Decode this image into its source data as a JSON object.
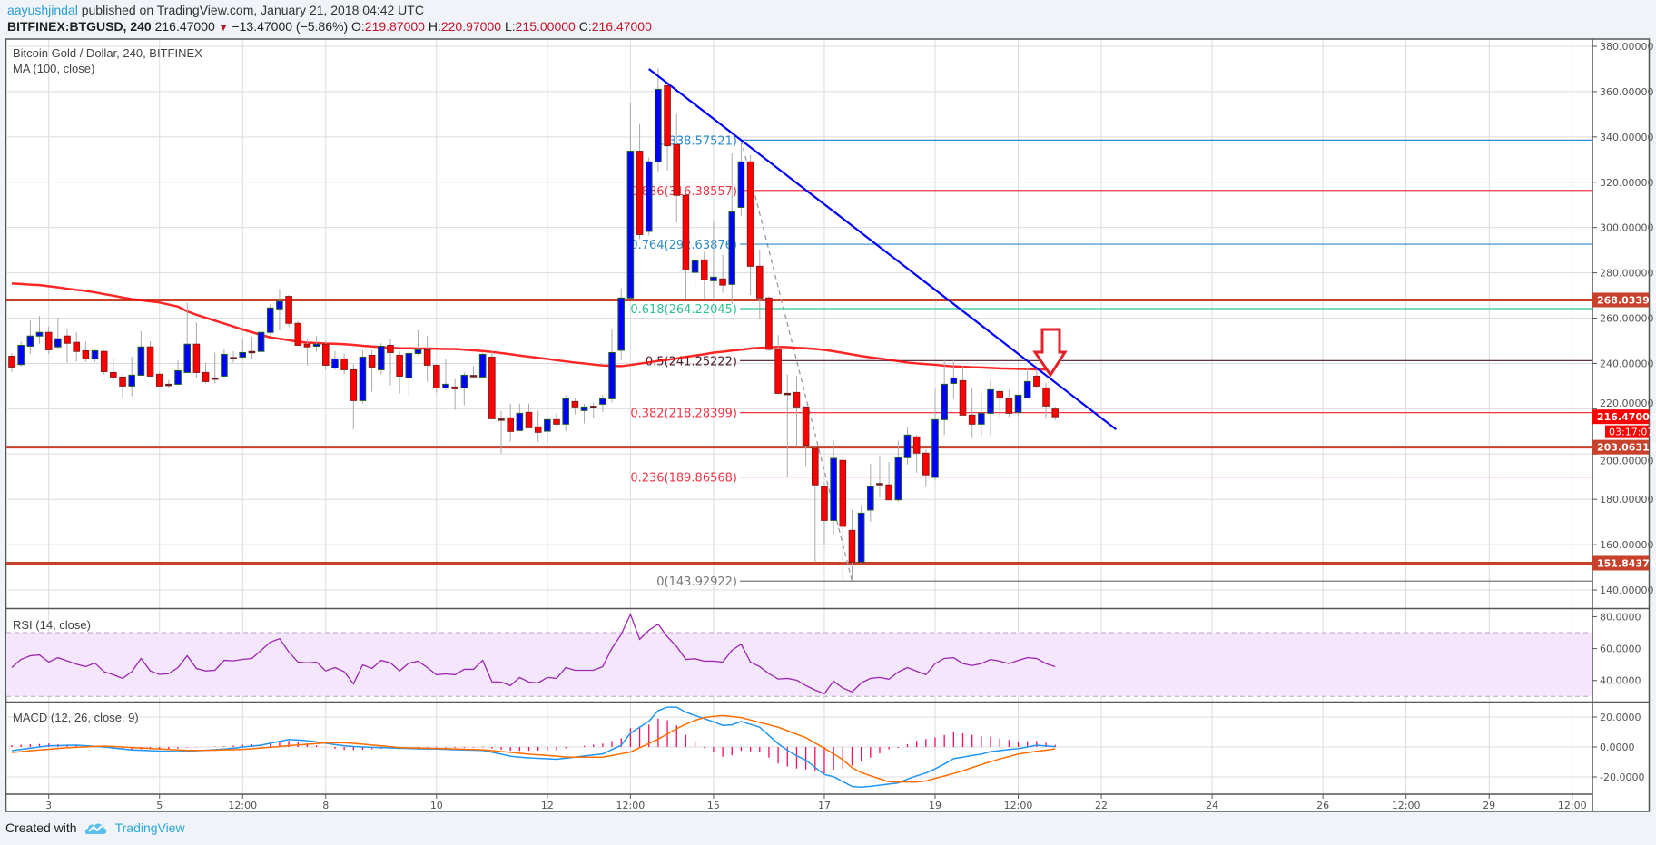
{
  "header": {
    "author": "aayushjindal",
    "published": "published on TradingView.com, January 21, 2018 04:42 UTC",
    "symbol": "BITFINEX:BTGUSD, 240",
    "last": "216.47000",
    "change": "−13.47000 (−5.86%)",
    "o_label": "O:",
    "o": "219.87000",
    "h_label": "H:",
    "h": "220.97000",
    "l_label": "L:",
    "l": "215.00000",
    "c_label": "C:",
    "c": "216.47000",
    "down_icon": "triangle-down-icon"
  },
  "legend": {
    "title": "Bitcoin Gold / Dollar, 240, BITFINEX",
    "ma": "MA (100, close)",
    "rsi": "RSI (14, close)",
    "macd": "MACD (12, 26, close, 9)"
  },
  "footer": {
    "created": "Created with",
    "brand": "TradingView",
    "logo_icon": "tradingview-cloud-icon"
  },
  "colors": {
    "up": "#0000ff",
    "down": "#ff0000",
    "ma": "#ff0000",
    "support": "#c8412b",
    "trendline": "#0000ff",
    "rsi": "#9c27b0",
    "macd": "#2196f3",
    "signal": "#ff6d00",
    "hist": "#ff0a5a",
    "arrow": "#e3232c"
  },
  "chart_data": {
    "type": "candlestick",
    "interval": "240",
    "first_candle": "2018-01-02T08:00Z",
    "price_axis": {
      "ylim": [
        130,
        385
      ],
      "ticks": [
        "140.00000",
        "160.00000",
        "180.00000",
        "200.00000",
        "220.00000",
        "240.00000",
        "260.00000",
        "280.00000",
        "300.00000",
        "320.00000",
        "340.00000",
        "360.00000",
        "380.00000"
      ]
    },
    "time_ticks": [
      {
        "label": "3",
        "t": "2018-01-03T00:00Z"
      },
      {
        "label": "5",
        "t": "2018-01-05T00:00Z"
      },
      {
        "label": "12:00",
        "t": "2018-01-06T12:00Z"
      },
      {
        "label": "8",
        "t": "2018-01-08T00:00Z"
      },
      {
        "label": "10",
        "t": "2018-01-10T00:00Z"
      },
      {
        "label": "12",
        "t": "2018-01-12T00:00Z"
      },
      {
        "label": "12:00",
        "t": "2018-01-13T12:00Z"
      },
      {
        "label": "15",
        "t": "2018-01-15T00:00Z"
      },
      {
        "label": "17",
        "t": "2018-01-17T00:00Z"
      },
      {
        "label": "19",
        "t": "2018-01-19T00:00Z"
      },
      {
        "label": "12:00",
        "t": "2018-01-20T12:00Z"
      },
      {
        "label": "22",
        "t": "2018-01-22T00:00Z"
      },
      {
        "label": "24",
        "t": "2018-01-24T00:00Z"
      },
      {
        "label": "26",
        "t": "2018-01-26T00:00Z"
      },
      {
        "label": "12:00",
        "t": "2018-01-27T12:00Z"
      },
      {
        "label": "29",
        "t": "2018-01-29T00:00Z"
      },
      {
        "label": "12:00",
        "t": "2018-01-30T12:00Z"
      }
    ],
    "ohlc": [
      [
        243.2,
        244.6,
        236.2,
        238.4
      ],
      [
        239.5,
        249.8,
        238.6,
        248.0
      ],
      [
        247.6,
        259.0,
        244.2,
        252.1
      ],
      [
        252.1,
        260.9,
        248.7,
        253.7
      ],
      [
        253.7,
        256.2,
        244.2,
        246.0
      ],
      [
        247.3,
        260.1,
        246.2,
        250.9
      ],
      [
        252.1,
        255.0,
        240.2,
        248.9
      ],
      [
        249.3,
        253.8,
        240.8,
        245.3
      ],
      [
        245.6,
        249.8,
        240.7,
        242.0
      ],
      [
        242.0,
        246.6,
        240.7,
        245.6
      ],
      [
        245.3,
        245.8,
        235.1,
        236.4
      ],
      [
        236.0,
        242.6,
        232.7,
        234.0
      ],
      [
        234.0,
        235.2,
        224.7,
        230.0
      ],
      [
        230.0,
        243.0,
        225.5,
        234.8
      ],
      [
        234.8,
        254.2,
        234.6,
        247.3
      ],
      [
        247.3,
        249.8,
        234.4,
        234.4
      ],
      [
        235.2,
        236.2,
        230.0,
        230.0
      ],
      [
        230.8,
        232.7,
        229.1,
        230.8
      ],
      [
        230.8,
        241.4,
        230.8,
        236.8
      ],
      [
        236.0,
        266.9,
        236.0,
        248.5
      ],
      [
        248.5,
        258.1,
        233.5,
        236.0
      ],
      [
        236.0,
        240.4,
        231.2,
        232.0
      ],
      [
        233.6,
        244.8,
        231.2,
        233.6
      ],
      [
        234.4,
        246.4,
        233.6,
        244.0
      ],
      [
        242.6,
        245.4,
        240.4,
        242.6
      ],
      [
        242.8,
        250.9,
        242.0,
        244.8
      ],
      [
        245.3,
        251.8,
        242.2,
        245.3
      ],
      [
        245.3,
        259.0,
        244.5,
        253.7
      ],
      [
        253.7,
        266.3,
        252.5,
        264.5
      ],
      [
        264.1,
        272.9,
        254.5,
        267.4
      ],
      [
        269.6,
        270.2,
        256.2,
        257.7
      ],
      [
        257.7,
        258.6,
        248.0,
        248.0
      ],
      [
        248.5,
        251.0,
        239.1,
        247.3
      ],
      [
        247.6,
        252.2,
        245.2,
        248.5
      ],
      [
        248.5,
        250.1,
        237.2,
        239.2
      ],
      [
        238.0,
        245.4,
        237.2,
        242.0
      ],
      [
        242.0,
        244.2,
        235.2,
        237.2
      ],
      [
        237.2,
        239.6,
        210.8,
        223.6
      ],
      [
        223.6,
        245.8,
        222.3,
        242.8
      ],
      [
        243.6,
        245.8,
        227.5,
        238.4
      ],
      [
        237.2,
        248.9,
        235.2,
        247.6
      ],
      [
        248.0,
        250.9,
        230.3,
        244.8
      ],
      [
        243.6,
        245.3,
        226.7,
        234.4
      ],
      [
        233.6,
        245.8,
        225.5,
        244.4
      ],
      [
        244.4,
        254.6,
        243.6,
        246.0
      ],
      [
        246.0,
        252.2,
        231.9,
        239.2
      ],
      [
        239.2,
        239.2,
        227.1,
        229.2
      ],
      [
        229.2,
        242.0,
        228.3,
        230.8
      ],
      [
        229.6,
        233.1,
        219.5,
        228.8
      ],
      [
        229.2,
        236.0,
        221.5,
        234.8
      ],
      [
        234.7,
        238.8,
        233.2,
        234.7
      ],
      [
        234.0,
        244.8,
        233.2,
        244.0
      ],
      [
        242.8,
        245.3,
        215.6,
        215.6
      ],
      [
        215.5,
        219.0,
        200.2,
        215.5
      ],
      [
        216.0,
        222.3,
        205.4,
        210.0
      ],
      [
        210.4,
        222.3,
        210.4,
        218.0
      ],
      [
        218.4,
        222.3,
        211.6,
        211.6
      ],
      [
        212.0,
        219.2,
        205.4,
        209.6
      ],
      [
        210.1,
        216.4,
        204.8,
        215.2
      ],
      [
        215.2,
        218.1,
        212.1,
        213.2
      ],
      [
        213.2,
        226.1,
        210.1,
        224.4
      ],
      [
        223.2,
        224.8,
        217.5,
        220.8
      ],
      [
        219.2,
        222.2,
        213.5,
        220.8
      ],
      [
        221.1,
        222.8,
        216.1,
        221.1
      ],
      [
        222.0,
        226.1,
        218.5,
        224.4
      ],
      [
        224.4,
        254.9,
        222.8,
        244.8
      ],
      [
        245.8,
        273.2,
        241.5,
        268.9
      ],
      [
        268.9,
        355.0,
        268.9,
        333.7
      ],
      [
        333.7,
        345.7,
        294.9,
        296.9
      ],
      [
        298.3,
        331.0,
        296.5,
        329.0
      ],
      [
        329.0,
        370.4,
        324.3,
        361.0
      ],
      [
        362.6,
        363.0,
        325.2,
        336.1
      ],
      [
        336.6,
        350.2,
        302.3,
        314.2
      ],
      [
        314.2,
        314.2,
        268.5,
        281.3
      ],
      [
        280.2,
        296.5,
        272.2,
        285.3
      ],
      [
        285.7,
        289.3,
        268.5,
        276.9
      ],
      [
        276.5,
        303.2,
        268.5,
        278.1
      ],
      [
        277.3,
        288.0,
        271.2,
        274.6
      ],
      [
        274.9,
        332.7,
        266.2,
        306.9
      ],
      [
        308.9,
        337.7,
        305.2,
        329.0
      ],
      [
        329.0,
        331.9,
        270.2,
        282.9
      ],
      [
        282.9,
        290.3,
        259.5,
        268.9
      ],
      [
        268.9,
        269.6,
        245.5,
        246.2
      ],
      [
        246.2,
        252.5,
        226.1,
        226.8
      ],
      [
        226.8,
        235.1,
        190.1,
        226.8
      ],
      [
        227.2,
        234.6,
        203.4,
        220.8
      ],
      [
        220.8,
        220.8,
        194.8,
        203.9
      ],
      [
        202.5,
        203.4,
        152.3,
        186.4
      ],
      [
        185.6,
        187.4,
        160.1,
        170.7
      ],
      [
        170.7,
        206.1,
        164.7,
        198.1
      ],
      [
        197.2,
        198.5,
        144.0,
        168.1
      ],
      [
        166.3,
        175.4,
        143.93,
        152.3
      ],
      [
        152.3,
        177.4,
        152.3,
        173.9
      ],
      [
        175.3,
        195.7,
        170.1,
        185.6
      ],
      [
        187.0,
        199.2,
        180.8,
        187.0
      ],
      [
        186.4,
        196.5,
        179.8,
        179.8
      ],
      [
        179.8,
        205.9,
        179.0,
        198.4
      ],
      [
        198.4,
        211.7,
        195.4,
        208.4
      ],
      [
        207.6,
        208.4,
        191.7,
        200.4
      ],
      [
        200.4,
        202.0,
        185.4,
        190.8
      ],
      [
        189.7,
        228.8,
        188.4,
        215.2
      ],
      [
        215.2,
        241.5,
        208.4,
        230.8
      ],
      [
        231.2,
        241.5,
        224.4,
        233.6
      ],
      [
        232.4,
        239.1,
        217.2,
        217.2
      ],
      [
        217.2,
        229.2,
        207.1,
        213.2
      ],
      [
        213.2,
        226.8,
        207.5,
        218.0
      ],
      [
        218.0,
        232.8,
        208.4,
        228.4
      ],
      [
        227.6,
        228.4,
        216.4,
        224.8
      ],
      [
        224.4,
        228.4,
        216.4,
        218.0
      ],
      [
        218.4,
        226.0,
        216.8,
        226.0
      ],
      [
        224.8,
        238.0,
        224.4,
        232.0
      ],
      [
        234.4,
        238.8,
        228.8,
        230.0
      ],
      [
        229.2,
        231.5,
        215.5,
        221.2
      ],
      [
        219.87,
        220.97,
        215.0,
        216.47
      ]
    ],
    "ma100": [
      275.3,
      275.1,
      274.8,
      274.6,
      274.1,
      273.6,
      273.0,
      272.5,
      272.0,
      271.4,
      270.6,
      269.9,
      269.1,
      268.4,
      267.9,
      267.4,
      266.9,
      266.0,
      265.1,
      263.0,
      261.5,
      260.2,
      258.9,
      257.6,
      256.3,
      255.0,
      253.8,
      252.6,
      251.5,
      250.9,
      250.3,
      249.6,
      249.2,
      249.0,
      248.8,
      248.7,
      248.5,
      248.2,
      247.8,
      247.5,
      247.2,
      246.9,
      246.7,
      246.7,
      246.6,
      246.6,
      246.5,
      246.4,
      246.4,
      246.1,
      245.8,
      245.5,
      245.1,
      244.6,
      244.1,
      243.5,
      243.0,
      242.5,
      242.0,
      241.4,
      240.9,
      240.4,
      240.0,
      239.5,
      239.1,
      238.9,
      238.8,
      239.3,
      239.9,
      240.5,
      241.1,
      241.6,
      242.2,
      242.9,
      243.5,
      244.1,
      244.8,
      245.2,
      245.7,
      246.1,
      246.6,
      246.9,
      247.1,
      247.3,
      247.2,
      246.9,
      246.7,
      246.4,
      246.0,
      245.4,
      244.7,
      244.0,
      243.3,
      242.7,
      242.2,
      241.6,
      241.0,
      240.4,
      240.0,
      239.7,
      239.4,
      239.0,
      238.7,
      238.5,
      238.3,
      238.2,
      238.0,
      237.8,
      237.7,
      237.6,
      237.5,
      237.4,
      237.3,
      237.3
    ],
    "fib_levels": [
      {
        "label": "1(338.57521)",
        "price": 338.57521,
        "color": "#2e8bc9"
      },
      {
        "label": "0.886(316.38557)",
        "price": 316.38557,
        "color": "#f23645"
      },
      {
        "label": "0.764(292.63876)",
        "price": 292.63876,
        "color": "#2e8bc9"
      },
      {
        "label": "0.618(264.22045)",
        "price": 264.22045,
        "color": "#2ec490"
      },
      {
        "label": "0.5(241.25222)",
        "price": 241.25222,
        "color": "#4a1a2a"
      },
      {
        "label": "0.382(218.28399)",
        "price": 218.28399,
        "color": "#f23645"
      },
      {
        "label": "0.236(189.86568)",
        "price": 189.86568,
        "color": "#f23645"
      },
      {
        "label": "0(143.92922)",
        "price": 143.92922,
        "color": "#777777"
      }
    ],
    "fib_anchor": [
      {
        "t": "2018-01-15T12:00Z",
        "price": 338.57521
      },
      {
        "t": "2018-01-17T12:00Z",
        "price": 143.92922
      }
    ],
    "support_resistance": [
      {
        "label": "268.03395",
        "price": 268.03395
      },
      {
        "label": "203.06312",
        "price": 203.06312
      },
      {
        "label": "151.84371",
        "price": 151.84371
      }
    ],
    "trendline": [
      {
        "t": "2018-01-13T20:00Z",
        "price": 370.0
      },
      {
        "t": "2018-01-22T06:24Z",
        "price": 210.9
      }
    ],
    "last_price_label": "216.47000",
    "countdown": "03:17:07",
    "rsi": {
      "ticks": [
        "80.0000",
        "60.0000",
        "40.0000"
      ],
      "bands": [
        70,
        30
      ],
      "values": [
        48.1,
        53.2,
        55.5,
        56.0,
        51.5,
        54.3,
        52.3,
        50.2,
        48.7,
        50.9,
        45.5,
        43.6,
        41.3,
        45.5,
        53.8,
        46.0,
        43.8,
        44.3,
        48.1,
        55.5,
        47.5,
        46.0,
        46.4,
        52.6,
        52.3,
        53.2,
        53.8,
        58.9,
        64.0,
        66.2,
        57.9,
        51.5,
        51.1,
        51.5,
        46.0,
        48.1,
        45.5,
        37.9,
        49.8,
        47.5,
        52.6,
        51.1,
        46.0,
        50.9,
        52.1,
        48.1,
        43.6,
        44.1,
        43.6,
        47.0,
        47.0,
        52.6,
        39.2,
        39.0,
        36.8,
        41.9,
        39.0,
        38.5,
        41.9,
        41.3,
        48.1,
        46.4,
        46.4,
        46.4,
        48.7,
        60.2,
        68.9,
        81.5,
        65.8,
        71.5,
        75.3,
        67.4,
        61.3,
        53.2,
        53.6,
        52.1,
        52.1,
        51.5,
        58.9,
        62.8,
        51.5,
        48.7,
        44.3,
        40.9,
        41.3,
        40.2,
        36.8,
        34.0,
        31.7,
        39.6,
        35.3,
        32.8,
        38.5,
        41.3,
        41.9,
        40.8,
        45.3,
        48.1,
        45.8,
        43.6,
        50.6,
        53.8,
        54.3,
        50.6,
        49.4,
        50.6,
        53.2,
        52.1,
        50.6,
        52.6,
        54.3,
        53.8,
        50.6,
        48.7
      ]
    },
    "macd": {
      "ticks": [
        "20.0000",
        "0.0000",
        "-20.0000"
      ],
      "macd": [
        -2.4,
        -1.6,
        -0.8,
        0,
        0.8,
        0.9,
        1.1,
        1.2,
        0.8,
        0.4,
        0,
        -0.7,
        -1.3,
        -2,
        -2.2,
        -2.4,
        -2.7,
        -2.9,
        -3,
        -2.7,
        -2.5,
        -2.2,
        -1.8,
        -1.4,
        -0.8,
        -0.1,
        0.6,
        1.2,
        2.5,
        3.7,
        5,
        4.6,
        4.2,
        3.4,
        2.5,
        1.6,
        0.8,
        0.3,
        0,
        -0.2,
        -0.4,
        -0.6,
        -0.8,
        -1,
        -1.2,
        -1.3,
        -1.4,
        -1.6,
        -1.8,
        -2,
        -2.1,
        -2.3,
        -3.5,
        -4.8,
        -6.2,
        -6.8,
        -7.3,
        -7.6,
        -7.9,
        -8.2,
        -7.5,
        -6.8,
        -6,
        -5.3,
        -4.6,
        -1.7,
        1.2,
        9.2,
        13.2,
        17.2,
        24.2,
        26.6,
        26.6,
        23.2,
        21,
        18.9,
        16.8,
        14.4,
        14.8,
        17,
        15.1,
        13.2,
        7.7,
        2.2,
        -2.2,
        -5.9,
        -8.8,
        -13.6,
        -18.4,
        -19.8,
        -23.1,
        -26.4,
        -26.8,
        -26.3,
        -25.5,
        -24.8,
        -24,
        -21.5,
        -19.3,
        -17.4,
        -14.6,
        -11.4,
        -7.8,
        -6.8,
        -5.7,
        -4.8,
        -3.1,
        -2.4,
        -1.7,
        -1.1,
        0,
        1.2,
        0.7,
        0.2
      ],
      "signal": [
        -3.6,
        -3.1,
        -2.5,
        -2,
        -1.5,
        -1,
        -0.5,
        -0.2,
        0.1,
        0.4,
        0.6,
        0.3,
        0,
        -0.4,
        -0.7,
        -1,
        -1.3,
        -1.7,
        -2,
        -2.3,
        -2.3,
        -2.2,
        -2.1,
        -1.9,
        -1.8,
        -1.6,
        -1.2,
        -0.7,
        -0.2,
        0.3,
        0.9,
        1.4,
        1.8,
        2.3,
        2.7,
        2.8,
        2.8,
        2.4,
        1.9,
        1.3,
        0.8,
        0.2,
        -0.4,
        -0.6,
        -0.7,
        -0.9,
        -1,
        -1.1,
        -1.3,
        -1.5,
        -1.7,
        -1.9,
        -2.4,
        -3,
        -3.6,
        -4.2,
        -4.8,
        -5.2,
        -5.6,
        -6.1,
        -6.7,
        -6.8,
        -6.8,
        -6.8,
        -6.8,
        -5.7,
        -4.5,
        -3.4,
        -0.5,
        2.3,
        5.2,
        8.7,
        12.2,
        15.2,
        17.8,
        19.6,
        20.4,
        21,
        20.3,
        19.6,
        18,
        16.4,
        14.8,
        13.2,
        10.9,
        8.5,
        6.2,
        2.6,
        -0.8,
        -4.6,
        -8.5,
        -13.9,
        -17.1,
        -19.2,
        -21.2,
        -23.2,
        -23.4,
        -23.4,
        -23.4,
        -22.7,
        -21,
        -19.4,
        -17.7,
        -15.9,
        -13.8,
        -11.8,
        -9.8,
        -8,
        -6.4,
        -4.7,
        -3.8,
        -2.9,
        -2.1,
        -1.2
      ]
    }
  }
}
